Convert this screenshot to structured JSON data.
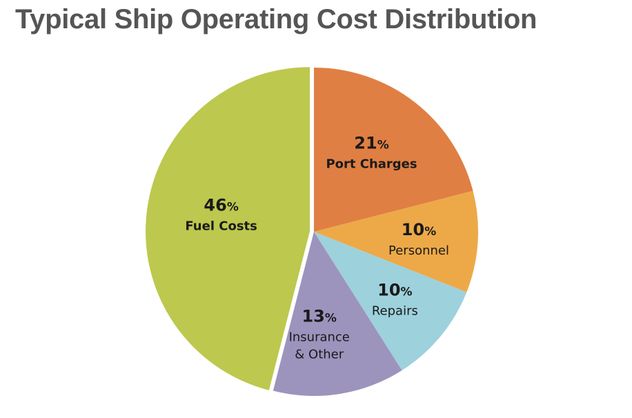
{
  "chart_data": {
    "type": "pie",
    "title": "Typical Ship Operating Cost Distribution",
    "slices": [
      {
        "label": "Port Charges",
        "value": 21,
        "value_text": "21",
        "pct_symbol": "%",
        "label_lines": [
          "Port Charges"
        ],
        "color": "#E07F43",
        "bold_label": true
      },
      {
        "label": "Personnel",
        "value": 10,
        "value_text": "10",
        "pct_symbol": "%",
        "label_lines": [
          "Personnel"
        ],
        "color": "#EDA948",
        "bold_label": false
      },
      {
        "label": "Repairs",
        "value": 10,
        "value_text": "10",
        "pct_symbol": "%",
        "label_lines": [
          "Repairs"
        ],
        "color": "#9DD1DC",
        "bold_label": false
      },
      {
        "label": "Insurance & Other",
        "value": 13,
        "value_text": "13",
        "pct_symbol": "%",
        "label_lines": [
          "Insurance",
          "& Other"
        ],
        "color": "#9C94BC",
        "bold_label": false
      },
      {
        "label": "Fuel Costs",
        "value": 46,
        "value_text": "46",
        "pct_symbol": "%",
        "label_lines": [
          "Fuel Costs"
        ],
        "color": "#BDC84E",
        "bold_label": true,
        "exploded": true
      }
    ],
    "start_angle_deg": 0,
    "direction": "clockwise",
    "legend": "none",
    "grid": false
  }
}
